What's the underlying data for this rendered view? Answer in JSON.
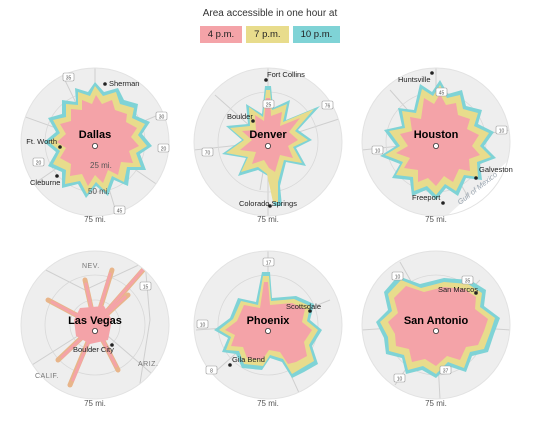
{
  "legend": {
    "title": "Area accessible in one hour at",
    "items": [
      {
        "label": "4 p.m.",
        "color": "#f4a3a8"
      },
      {
        "label": "7 p.m.",
        "color": "#e8dc8c"
      },
      {
        "label": "10 p.m.",
        "color": "#7fd3d6"
      }
    ]
  },
  "colors": {
    "disk": "#eeeeee",
    "road": "#cfcfcf",
    "ring": "#d8d8d8",
    "center_dot": "#ffffff"
  },
  "maps": [
    {
      "city": "Dallas",
      "towns": [
        "Sherman",
        "Ft. Worth",
        "Cleburne"
      ],
      "ring_labels": [
        "25 mi.",
        "50 mi."
      ],
      "outer_label": "75 mi.",
      "highway_shields": [
        "35",
        "30",
        "20",
        "20",
        "45"
      ]
    },
    {
      "city": "Denver",
      "towns": [
        "Fort Collins",
        "Boulder",
        "Colorado Springs"
      ],
      "outer_label": "75 mi.",
      "highway_shields": [
        "25",
        "76",
        "70"
      ]
    },
    {
      "city": "Houston",
      "towns": [
        "Huntsville",
        "Galveston",
        "Freeport"
      ],
      "outer_label": "75 mi.",
      "water_label": "Gulf of Mexico",
      "highway_shields": [
        "45",
        "10",
        "10"
      ]
    },
    {
      "city": "Las Vegas",
      "towns": [
        "Boulder City"
      ],
      "outer_label": "75 mi.",
      "regions": [
        "NEV.",
        "ARIZ.",
        "CALIF."
      ],
      "highway_shields": [
        "15"
      ]
    },
    {
      "city": "Phoenix",
      "towns": [
        "Scottsdale",
        "Gila Bend"
      ],
      "outer_label": "75 mi.",
      "highway_shields": [
        "17",
        "10",
        "8"
      ]
    },
    {
      "city": "San Antonio",
      "towns": [
        "San Marcos"
      ],
      "outer_label": "75 mi.",
      "highway_shields": [
        "10",
        "35",
        "10",
        "37"
      ]
    }
  ]
}
